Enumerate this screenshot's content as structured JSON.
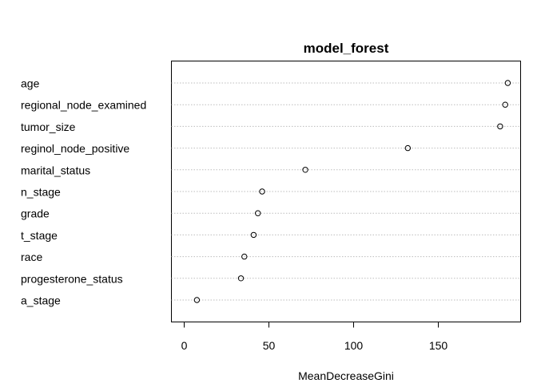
{
  "chart_data": {
    "type": "scatter",
    "title": "model_forest",
    "xlabel": "MeanDecreaseGini",
    "ylabel": "",
    "xlim": [
      -7.5,
      199.5
    ],
    "xticks": [
      0,
      50,
      100,
      150
    ],
    "grid": "dotted horizontal guide lines",
    "categories": [
      "age",
      "regional_node_examined",
      "tumor_size",
      "reginol_node_positive",
      "marital_status",
      "n_stage",
      "grade",
      "t_stage",
      "race",
      "progesterone_status",
      "a_stage"
    ],
    "values": [
      191,
      189.5,
      186.5,
      132,
      71.5,
      46,
      43.5,
      41,
      35.5,
      33.5,
      7.5
    ]
  }
}
